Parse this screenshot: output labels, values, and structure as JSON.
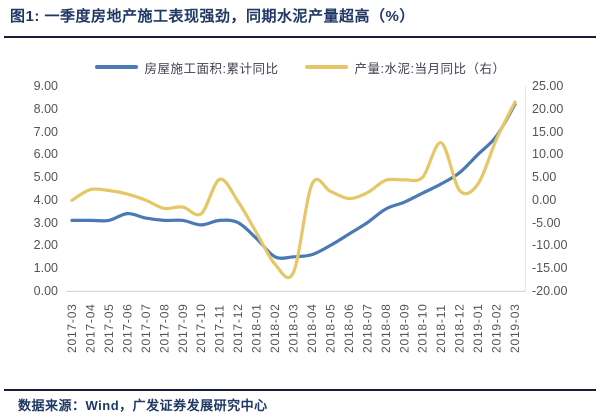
{
  "figure": {
    "title": "图1: 一季度房地产施工表现强劲，同期水泥产量超高（%）",
    "source": "数据来源：Wind，广发证券发展研究中心"
  },
  "colors": {
    "accent_navy": "#1f3864",
    "rule_dark": "#1c1c38",
    "axis_text": "#545454",
    "axis_line": "#d9d9d9",
    "series_blue": "#4a79b6",
    "series_yellow": "#e5c768"
  },
  "legend": [
    {
      "label": "房屋施工面积:累计同比",
      "color": "#4a79b6"
    },
    {
      "label": "产量:水泥:当月同比（右）",
      "color": "#e5c768"
    }
  ],
  "chart_data": {
    "type": "line",
    "title": "图1: 一季度房地产施工表现强劲，同期水泥产量超高（%）",
    "xlabel": "",
    "ylabel_left": "",
    "ylabel_right": "",
    "grid": "none",
    "legend_position": "top",
    "categories": [
      "2017-03",
      "2017-04",
      "2017-05",
      "2017-06",
      "2017-07",
      "2017-08",
      "2017-09",
      "2017-10",
      "2017-11",
      "2017-12",
      "2018-01",
      "2018-02",
      "2018-03",
      "2018-04",
      "2018-05",
      "2018-06",
      "2018-07",
      "2018-08",
      "2018-09",
      "2018-10",
      "2018-11",
      "2018-12",
      "2019-01",
      "2019-02",
      "2019-03"
    ],
    "left_axis": {
      "min": 0,
      "max": 9,
      "ticks": [
        "9.00",
        "8.00",
        "7.00",
        "6.00",
        "5.00",
        "4.00",
        "3.00",
        "2.00",
        "1.00",
        "0.00"
      ]
    },
    "right_axis": {
      "min": -20,
      "max": 25,
      "ticks": [
        "25.00",
        "20.00",
        "15.00",
        "10.00",
        "5.00",
        "0.00",
        "-5.00",
        "-10.00",
        "-15.00",
        "-20.00"
      ]
    },
    "series": [
      {
        "name": "房屋施工面积:累计同比",
        "axis": "left",
        "color": "#4a79b6",
        "values": [
          3.1,
          3.1,
          3.1,
          3.4,
          3.2,
          3.1,
          3.1,
          2.9,
          3.1,
          3.0,
          2.3,
          1.5,
          1.5,
          1.6,
          2.0,
          2.5,
          3.0,
          3.6,
          3.9,
          4.3,
          4.7,
          5.2,
          6.0,
          6.8,
          8.2
        ]
      },
      {
        "name": "产量:水泥:当月同比（右）",
        "axis": "right",
        "color": "#e5c768",
        "values": [
          0.3,
          2.7,
          2.5,
          1.7,
          0.3,
          -1.5,
          -1.2,
          -2.7,
          5.0,
          0.0,
          -7.0,
          -14.0,
          -15.8,
          3.9,
          2.3,
          0.7,
          2.0,
          4.8,
          4.9,
          5.5,
          13.2,
          2.5,
          4.0,
          14.0,
          22.3
        ]
      }
    ]
  }
}
